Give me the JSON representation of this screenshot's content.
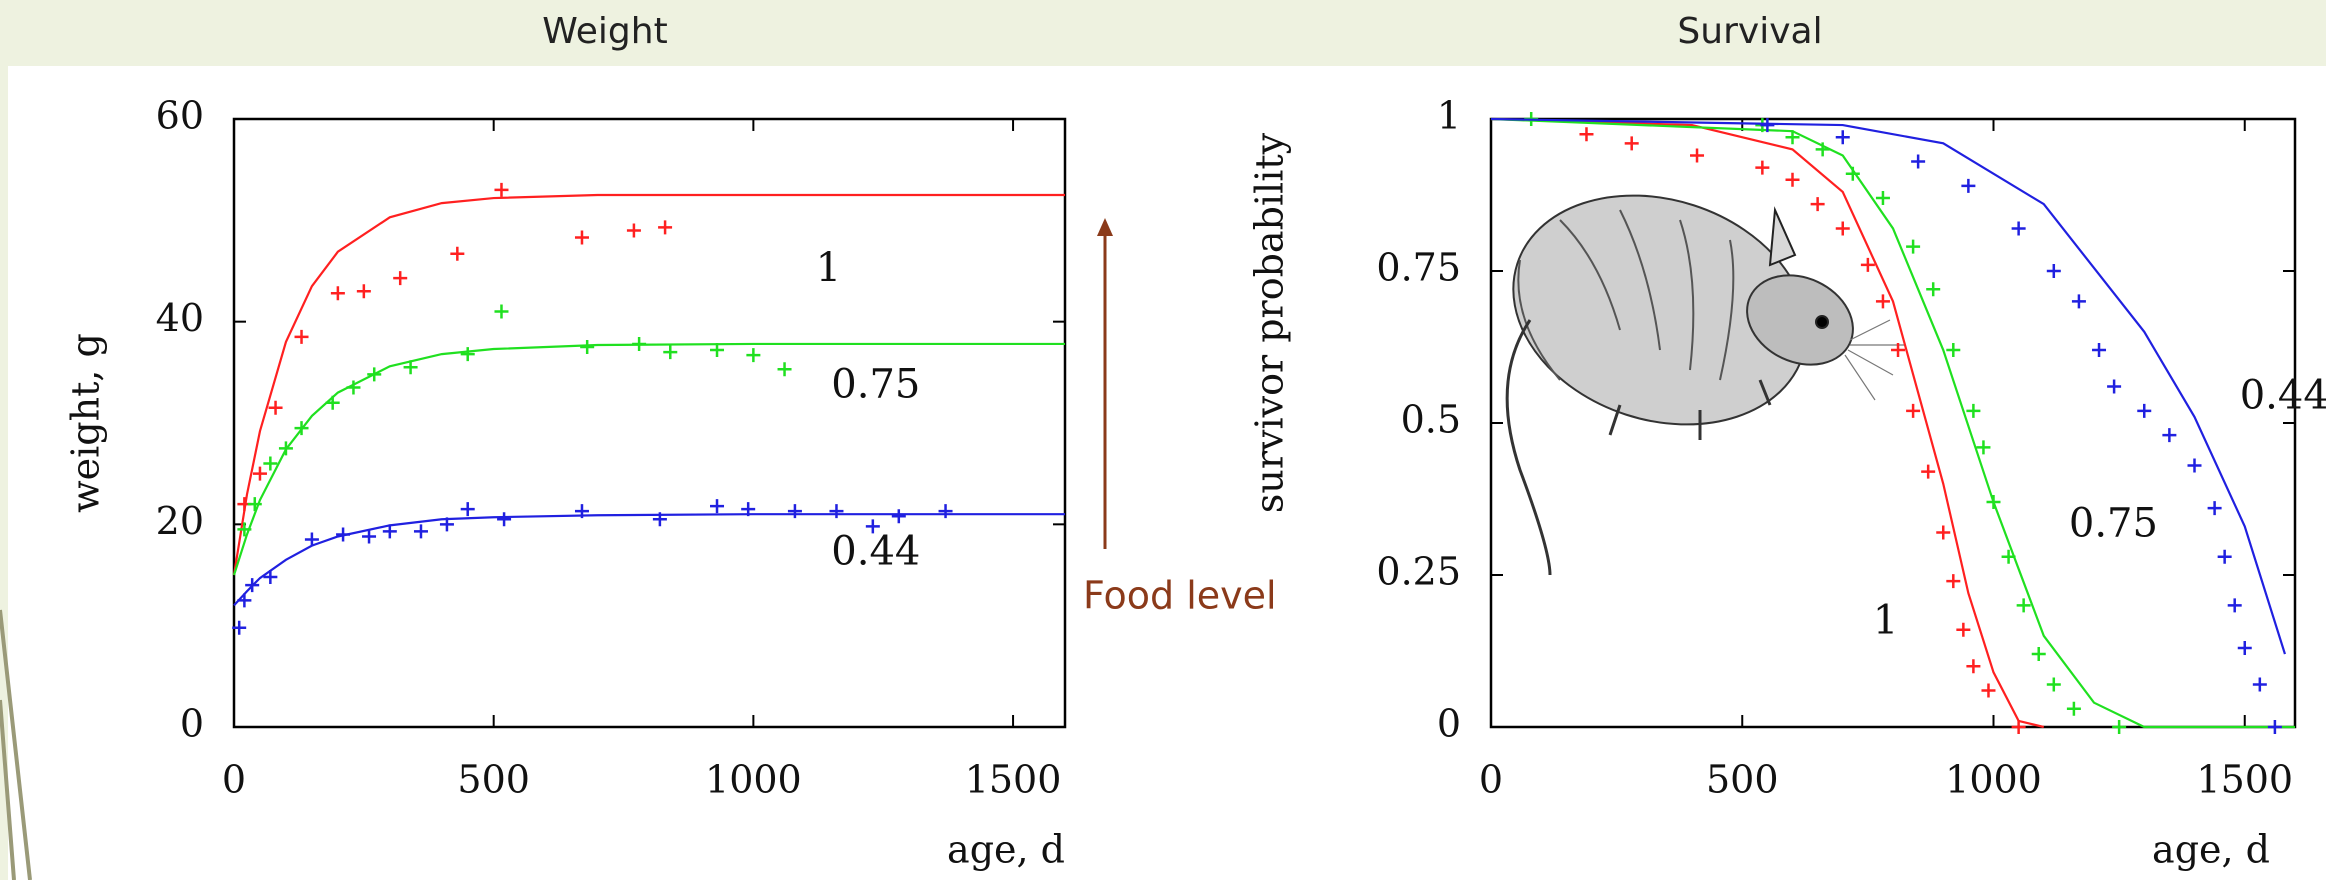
{
  "chart_data": [
    {
      "type": "scatter",
      "title": "Weight",
      "xlabel": "age, d",
      "ylabel": "weight, g",
      "xlim": [
        0,
        1600
      ],
      "ylim": [
        0,
        60
      ],
      "xticks": [
        0,
        500,
        1000,
        1500
      ],
      "yticks": [
        0,
        20,
        40,
        60
      ],
      "annotation": "Food level",
      "series": [
        {
          "name": "1",
          "color": "#ff2020",
          "x": [
            20,
            50,
            80,
            130,
            200,
            250,
            320,
            430,
            515,
            670,
            770,
            830
          ],
          "values": [
            22,
            25,
            31.5,
            38.5,
            42.8,
            43,
            44.3,
            46.7,
            53,
            48.3,
            49,
            49.3
          ],
          "fit_x": [
            0,
            25,
            50,
            100,
            150,
            200,
            300,
            400,
            500,
            700,
            1000,
            1300,
            1600
          ],
          "fit_values": [
            15,
            22.95,
            29.2,
            38,
            43.5,
            46.9,
            50.3,
            51.7,
            52.2,
            52.5,
            52.5,
            52.5,
            52.5
          ]
        },
        {
          "name": "0.75",
          "color": "#20e020",
          "x": [
            20,
            40,
            70,
            100,
            130,
            190,
            230,
            270,
            340,
            450,
            515,
            680,
            780,
            840,
            930,
            1000,
            1060
          ],
          "values": [
            19.5,
            22,
            26,
            27.5,
            29.5,
            32,
            33.5,
            34.8,
            35.5,
            36.8,
            41,
            37.5,
            37.8,
            37,
            37.2,
            36.7,
            35.3
          ],
          "fit_x": [
            0,
            25,
            50,
            100,
            150,
            200,
            300,
            400,
            500,
            700,
            1000,
            1300,
            1600
          ],
          "fit_values": [
            15,
            19,
            22.4,
            27.4,
            30.7,
            33,
            35.6,
            36.8,
            37.3,
            37.7,
            37.8,
            37.8,
            37.8
          ]
        },
        {
          "name": "0.44",
          "color": "#2020e0",
          "x": [
            10,
            20,
            35,
            70,
            150,
            210,
            260,
            300,
            360,
            410,
            450,
            520,
            670,
            820,
            930,
            990,
            1080,
            1160,
            1230,
            1280,
            1370
          ],
          "values": [
            9.8,
            12.5,
            14,
            14.8,
            18.5,
            19,
            18.8,
            19.3,
            19.3,
            20,
            21.5,
            20.5,
            21.3,
            20.5,
            21.8,
            21.5,
            21.3,
            21.3,
            19.8,
            20.8,
            21.3
          ],
          "fit_x": [
            0,
            25,
            50,
            100,
            150,
            200,
            300,
            400,
            500,
            700,
            1000,
            1300,
            1600
          ],
          "fit_values": [
            12,
            13.4,
            14.7,
            16.5,
            17.9,
            18.8,
            19.9,
            20.5,
            20.7,
            20.9,
            21,
            21,
            21
          ]
        }
      ]
    },
    {
      "type": "scatter",
      "title": "Survival",
      "xlabel": "age, d",
      "ylabel": "survivor probability",
      "xlim": [
        0,
        1600
      ],
      "ylim": [
        0,
        1
      ],
      "xticks": [
        0,
        500,
        1000,
        1500
      ],
      "yticks": [
        0,
        0.25,
        0.5,
        0.75,
        1
      ],
      "series": [
        {
          "name": "1",
          "color": "#ff2020",
          "x": [
            190,
            280,
            410,
            540,
            600,
            650,
            700,
            750,
            780,
            810,
            840,
            870,
            900,
            920,
            940,
            960,
            990,
            1050
          ],
          "values": [
            0.975,
            0.96,
            0.94,
            0.92,
            0.9,
            0.86,
            0.82,
            0.76,
            0.7,
            0.62,
            0.52,
            0.42,
            0.32,
            0.24,
            0.16,
            0.1,
            0.06,
            0
          ],
          "fit_x": [
            0,
            400,
            600,
            700,
            800,
            900,
            950,
            1000,
            1050,
            1100
          ],
          "fit_values": [
            1,
            0.99,
            0.95,
            0.88,
            0.7,
            0.4,
            0.22,
            0.09,
            0.01,
            0
          ]
        },
        {
          "name": "0.75",
          "color": "#20e020",
          "x": [
            80,
            540,
            600,
            660,
            720,
            780,
            840,
            880,
            920,
            960,
            980,
            1000,
            1030,
            1060,
            1090,
            1120,
            1160,
            1250
          ],
          "values": [
            1,
            0.99,
            0.97,
            0.95,
            0.91,
            0.87,
            0.79,
            0.72,
            0.62,
            0.52,
            0.46,
            0.37,
            0.28,
            0.2,
            0.12,
            0.07,
            0.03,
            0
          ],
          "fit_x": [
            0,
            600,
            700,
            800,
            900,
            1000,
            1100,
            1200,
            1300,
            1600
          ],
          "fit_values": [
            1,
            0.98,
            0.94,
            0.82,
            0.62,
            0.37,
            0.15,
            0.04,
            0,
            0
          ]
        },
        {
          "name": "0.44",
          "color": "#2020e0",
          "x": [
            550,
            700,
            850,
            950,
            1050,
            1120,
            1170,
            1210,
            1240,
            1300,
            1350,
            1400,
            1440,
            1460,
            1480,
            1500,
            1530,
            1560
          ],
          "values": [
            0.99,
            0.97,
            0.93,
            0.89,
            0.82,
            0.75,
            0.7,
            0.62,
            0.56,
            0.52,
            0.48,
            0.43,
            0.36,
            0.28,
            0.2,
            0.13,
            0.07,
            0
          ],
          "fit_x": [
            0,
            700,
            900,
            1100,
            1300,
            1400,
            1500,
            1580
          ],
          "fit_values": [
            1,
            0.99,
            0.96,
            0.86,
            0.65,
            0.51,
            0.33,
            0.12
          ]
        }
      ]
    }
  ]
}
